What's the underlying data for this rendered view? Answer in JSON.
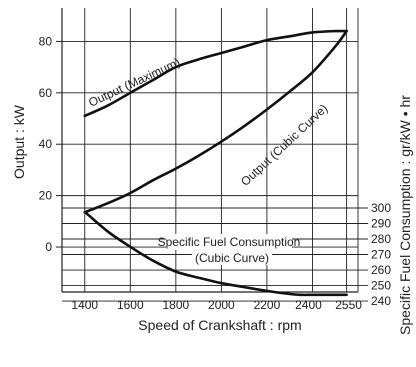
{
  "chart_data": {
    "type": "line",
    "title": "",
    "xlabel": "Speed of Crankshaft : rpm",
    "ylabel": "Output : kW",
    "y2label": "Specific Fuel Consumption : gr/kW • hr",
    "x_ticks": [
      {
        "value": 1400,
        "label": "1400"
      },
      {
        "value": 1600,
        "label": "1600"
      },
      {
        "value": 1800,
        "label": "1800"
      },
      {
        "value": 2000,
        "label": "2000"
      },
      {
        "value": 2200,
        "label": "2200"
      },
      {
        "value": 2400,
        "label": "2400"
      },
      {
        "value": 2550,
        "label": "2550"
      }
    ],
    "y_ticks": [
      {
        "value": 0,
        "label": "0"
      },
      {
        "value": 20,
        "label": "20"
      },
      {
        "value": 40,
        "label": "40"
      },
      {
        "value": 60,
        "label": "60"
      },
      {
        "value": 80,
        "label": "80"
      }
    ],
    "y2_ticks": [
      {
        "value": 240,
        "label": "240"
      },
      {
        "value": 250,
        "label": "250"
      },
      {
        "value": 260,
        "label": "260"
      },
      {
        "value": 270,
        "label": "270"
      },
      {
        "value": 280,
        "label": "280"
      },
      {
        "value": 290,
        "label": "290"
      },
      {
        "value": 300,
        "label": "300"
      }
    ],
    "grid": true,
    "series": [
      {
        "name": "Output (Maximum)",
        "axis": "left",
        "x": [
          1400,
          1500,
          1600,
          1700,
          1800,
          1900,
          2000,
          2100,
          2200,
          2300,
          2400,
          2500,
          2550
        ],
        "y": [
          51,
          55,
          60,
          65,
          70,
          73,
          75.5,
          78,
          80.5,
          82,
          83.5,
          84,
          84
        ]
      },
      {
        "name": "Output (Cubic Curve)",
        "axis": "left",
        "x": [
          1400,
          1500,
          1600,
          1700,
          1800,
          1900,
          2000,
          2100,
          2200,
          2300,
          2400,
          2500,
          2550
        ],
        "y": [
          13.5,
          17,
          21,
          26,
          30.5,
          35.5,
          41,
          47,
          53.5,
          60.5,
          68,
          78,
          84
        ]
      },
      {
        "name": "Specific Fuel Consumption (Cubic Curve)",
        "axis": "right",
        "x": [
          1400,
          1500,
          1600,
          1700,
          1800,
          1900,
          2000,
          2100,
          2200,
          2300,
          2350,
          2400,
          2500,
          2550
        ],
        "y": [
          297.5,
          285,
          275,
          266,
          259,
          255,
          251.5,
          249,
          246.5,
          244.5,
          244,
          244,
          244,
          244
        ]
      }
    ]
  }
}
